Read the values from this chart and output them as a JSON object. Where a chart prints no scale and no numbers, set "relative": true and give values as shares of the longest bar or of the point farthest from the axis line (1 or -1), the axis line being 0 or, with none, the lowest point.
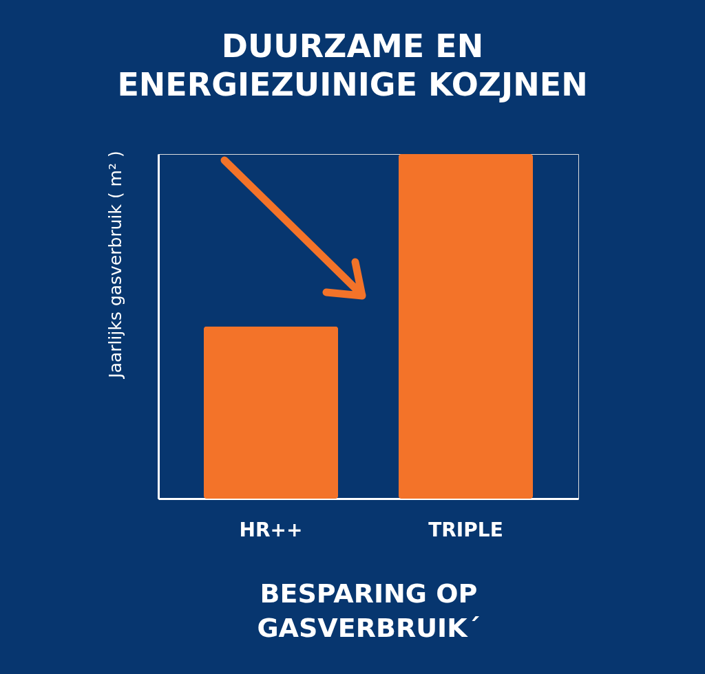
{
  "chart_data": {
    "type": "bar",
    "title": "DUURZAME EN\nENERGIEZUINIGE KOZJNEN",
    "xlabel": "BESPARING OP\nGASVERBRUIK´",
    "ylabel": "Jaarlijks gasverbruik ( m² )",
    "categories": [
      "HR++",
      "TRIPLE"
    ],
    "values": [
      0.5,
      1
    ],
    "color": "#f37329",
    "relative": true
  }
}
